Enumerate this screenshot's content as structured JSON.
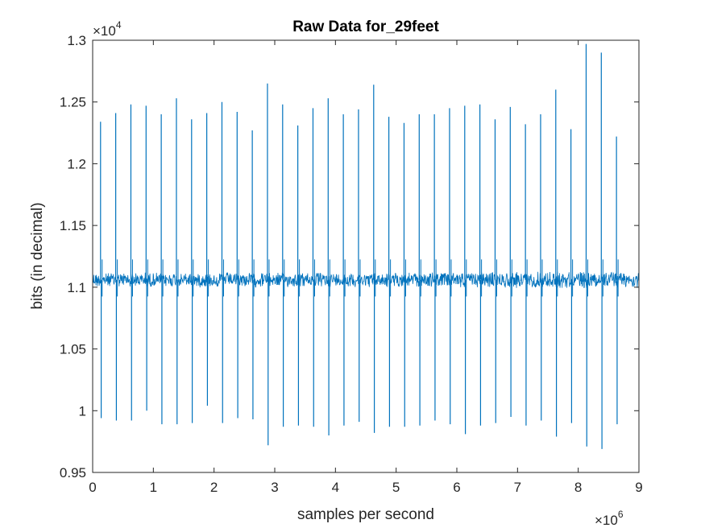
{
  "chart_data": {
    "type": "line",
    "title": "Raw Data for_29feet",
    "xlabel": "samples per second",
    "ylabel": "bits (in decimal)",
    "xlim": [
      0,
      9
    ],
    "ylim": [
      0.95,
      1.3
    ],
    "x_multiplier": {
      "base": "×10",
      "exponent": "6"
    },
    "y_multiplier": {
      "base": "×10",
      "exponent": "4"
    },
    "x_ticks": [
      "0",
      "1",
      "2",
      "3",
      "4",
      "5",
      "6",
      "7",
      "8",
      "9"
    ],
    "y_ticks": [
      "0.95",
      "1",
      "1.05",
      "1.1",
      "1.15",
      "1.2",
      "1.25",
      "1.3"
    ],
    "grid": false,
    "baseline": 1.106,
    "noise_band": [
      1.098,
      1.113
    ],
    "series": [
      {
        "color": "#0072BD",
        "spikes": [
          {
            "x": 0.13,
            "high": 1.234,
            "low": 0.994
          },
          {
            "x": 0.38,
            "high": 1.241,
            "low": 0.992
          },
          {
            "x": 0.63,
            "high": 1.248,
            "low": 0.992
          },
          {
            "x": 0.88,
            "high": 1.247,
            "low": 1.0
          },
          {
            "x": 1.13,
            "high": 1.24,
            "low": 0.989
          },
          {
            "x": 1.38,
            "high": 1.253,
            "low": 0.989
          },
          {
            "x": 1.63,
            "high": 1.236,
            "low": 0.99
          },
          {
            "x": 1.88,
            "high": 1.241,
            "low": 1.004
          },
          {
            "x": 2.13,
            "high": 1.25,
            "low": 0.99
          },
          {
            "x": 2.38,
            "high": 1.242,
            "low": 0.994
          },
          {
            "x": 2.63,
            "high": 1.227,
            "low": 0.993
          },
          {
            "x": 2.88,
            "high": 1.265,
            "low": 0.972
          },
          {
            "x": 3.13,
            "high": 1.248,
            "low": 0.987
          },
          {
            "x": 3.38,
            "high": 1.231,
            "low": 0.988
          },
          {
            "x": 3.63,
            "high": 1.245,
            "low": 0.987
          },
          {
            "x": 3.88,
            "high": 1.253,
            "low": 0.98
          },
          {
            "x": 4.13,
            "high": 1.24,
            "low": 0.988
          },
          {
            "x": 4.38,
            "high": 1.244,
            "low": 0.991
          },
          {
            "x": 4.63,
            "high": 1.264,
            "low": 0.982
          },
          {
            "x": 4.88,
            "high": 1.238,
            "low": 0.987
          },
          {
            "x": 5.13,
            "high": 1.233,
            "low": 0.987
          },
          {
            "x": 5.38,
            "high": 1.24,
            "low": 0.988
          },
          {
            "x": 5.63,
            "high": 1.24,
            "low": 0.992
          },
          {
            "x": 5.88,
            "high": 1.245,
            "low": 0.989
          },
          {
            "x": 6.13,
            "high": 1.247,
            "low": 0.981
          },
          {
            "x": 6.38,
            "high": 1.248,
            "low": 0.988
          },
          {
            "x": 6.63,
            "high": 1.236,
            "low": 0.99
          },
          {
            "x": 6.88,
            "high": 1.246,
            "low": 0.995
          },
          {
            "x": 7.13,
            "high": 1.232,
            "low": 0.988
          },
          {
            "x": 7.38,
            "high": 1.24,
            "low": 0.992
          },
          {
            "x": 7.63,
            "high": 1.26,
            "low": 0.979
          },
          {
            "x": 7.88,
            "high": 1.228,
            "low": 0.99
          },
          {
            "x": 8.13,
            "high": 1.297,
            "low": 0.971
          },
          {
            "x": 8.38,
            "high": 1.29,
            "low": 0.969
          },
          {
            "x": 8.63,
            "high": 1.222,
            "low": 0.989
          }
        ]
      }
    ]
  }
}
